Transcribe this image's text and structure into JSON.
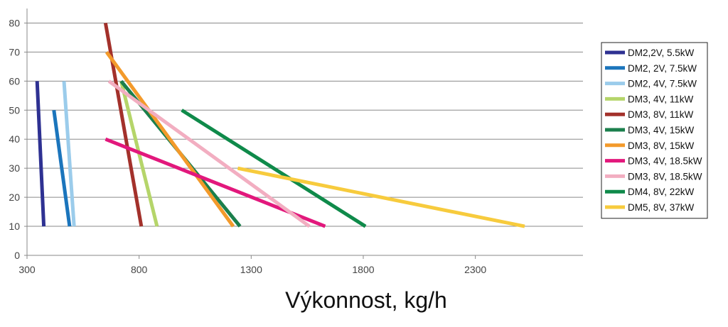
{
  "chart_data": {
    "type": "line",
    "title": "",
    "xlabel": "Výkonnost, kg/h",
    "ylabel": "",
    "xlim": [
      300,
      2800
    ],
    "ylim": [
      0,
      85
    ],
    "xticks": [
      300,
      800,
      1300,
      1800,
      2300
    ],
    "yticks": [
      0,
      10,
      20,
      30,
      40,
      50,
      60,
      70,
      80
    ],
    "grid": true,
    "legend": "right",
    "series": [
      {
        "name": "DM2,2V, 5.5kW",
        "color": "#2E3192",
        "x": [
          345,
          375
        ],
        "y": [
          60,
          10
        ]
      },
      {
        "name": "DM2, 2V, 7.5kW",
        "color": "#1B75BC",
        "x": [
          420,
          490
        ],
        "y": [
          50,
          10
        ]
      },
      {
        "name": "DM2, 4V, 7.5kW",
        "color": "#9BCCEB",
        "x": [
          465,
          510
        ],
        "y": [
          60,
          10
        ]
      },
      {
        "name": "DM3, 4V, 11kW",
        "color": "#B5D56A",
        "x": [
          720,
          880
        ],
        "y": [
          60,
          10
        ]
      },
      {
        "name": "DM3, 8V, 11kW",
        "color": "#A3312B",
        "x": [
          650,
          810
        ],
        "y": [
          80,
          10
        ]
      },
      {
        "name": "DM3, 4V, 15kW",
        "color": "#1B7F4C",
        "x": [
          720,
          1250
        ],
        "y": [
          60,
          10
        ]
      },
      {
        "name": "DM3, 8V, 15kW",
        "color": "#F39A2B",
        "x": [
          655,
          1220
        ],
        "y": [
          70,
          10
        ]
      },
      {
        "name": "DM3, 4V, 18.5kW",
        "color": "#E2187C",
        "x": [
          650,
          1630
        ],
        "y": [
          40,
          10
        ]
      },
      {
        "name": "DM3, 8V, 18.5kW",
        "color": "#F2AEC1",
        "x": [
          665,
          1560
        ],
        "y": [
          60,
          10
        ]
      },
      {
        "name": "DM4, 8V, 22kW",
        "color": "#0F8A4A",
        "x": [
          990,
          1810
        ],
        "y": [
          50,
          10
        ]
      },
      {
        "name": "DM5, 8V, 37kW",
        "color": "#F7CB3D",
        "x": [
          1240,
          2520
        ],
        "y": [
          30,
          10
        ]
      }
    ]
  }
}
